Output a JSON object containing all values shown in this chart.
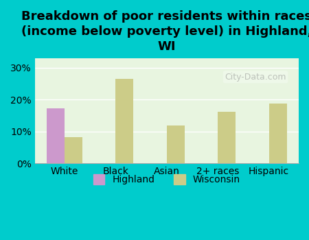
{
  "title": "Breakdown of poor residents within races\n(income below poverty level) in Highland,\nWI",
  "categories": [
    "White",
    "Black",
    "Asian",
    "2+ races",
    "Hispanic"
  ],
  "highland_values": [
    17.2,
    0,
    0,
    0,
    0
  ],
  "wisconsin_values": [
    8.2,
    26.4,
    11.8,
    16.2,
    18.8
  ],
  "highland_color": "#cc99cc",
  "wisconsin_color": "#cccc88",
  "background_outer": "#00cccc",
  "background_inner": "#e8f5e0",
  "ylim": [
    0,
    33
  ],
  "yticks": [
    0,
    10,
    20,
    30
  ],
  "bar_width": 0.35,
  "title_fontsize": 13,
  "tick_fontsize": 10,
  "legend_fontsize": 10,
  "watermark": "City-Data.com"
}
